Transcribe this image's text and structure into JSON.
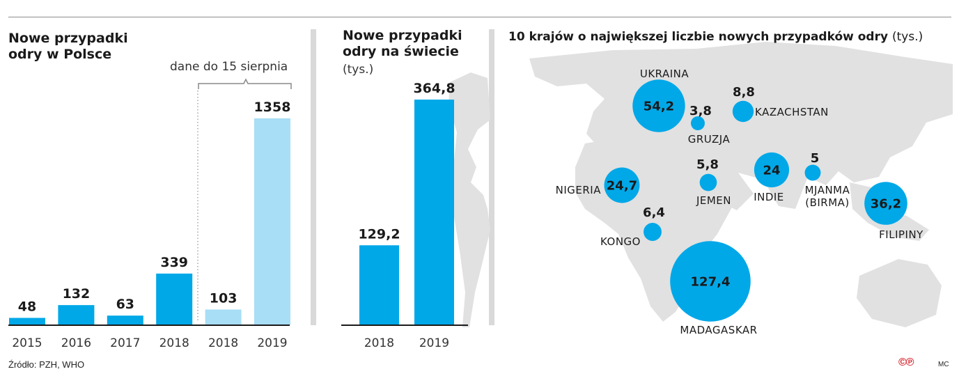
{
  "colors": {
    "accent": "#00a8e8",
    "accent_light": "#a8def6",
    "map": "#e1e1e1",
    "separator": "#d9d9d9"
  },
  "panels": {
    "poland": {
      "title_line1": "Nowe przypadki",
      "title_line2": "odry w Polsce",
      "bracket_note": "dane do 15 sierpnia"
    },
    "world": {
      "title_line1": "Nowe przypadki",
      "title_line2": "odry na świecie",
      "unit": "(tys.)"
    },
    "countries": {
      "title": "10 krajów o największej liczbie nowych przypadków odry",
      "unit": "(tys.)"
    }
  },
  "footer": {
    "source": "Źródło: PZH, WHO",
    "author": "MC",
    "logo": "©℗"
  },
  "chart_data": [
    {
      "type": "bar",
      "title": "Nowe przypadki odry w Polsce",
      "categories": [
        "2015",
        "2016",
        "2017",
        "2018",
        "2018",
        "2019"
      ],
      "values": [
        48,
        132,
        63,
        339,
        103,
        1358
      ],
      "value_labels": [
        "48",
        "132",
        "63",
        "339",
        "103",
        "1358"
      ],
      "highlight": [
        false,
        false,
        false,
        false,
        true,
        true
      ],
      "note": "dane do 15 sierpnia",
      "ylim": [
        0,
        1450
      ]
    },
    {
      "type": "bar",
      "title": "Nowe przypadki odry na świecie",
      "ylabel": "(tys.)",
      "categories": [
        "2018",
        "2019"
      ],
      "values": [
        129.2,
        364.8
      ],
      "value_labels": [
        "129,2",
        "364,8"
      ],
      "ylim": [
        0,
        370
      ]
    },
    {
      "type": "scatter",
      "title": "10 krajów o największej liczbie nowych przypadków odry",
      "ylabel": "(tys.)",
      "points": [
        {
          "country": "UKRAINA",
          "value": 54.2,
          "label": "54,2"
        },
        {
          "country": "GRUZJA",
          "value": 3.8,
          "label": "3,8"
        },
        {
          "country": "KAZACHSTAN",
          "value": 8.8,
          "label": "8,8"
        },
        {
          "country": "NIGERIA",
          "value": 24.7,
          "label": "24,7"
        },
        {
          "country": "JEMEN",
          "value": 5.8,
          "label": "5,8"
        },
        {
          "country": "INDIE",
          "value": 24,
          "label": "24"
        },
        {
          "country": "MJANMA",
          "country_line2": "(BIRMA)",
          "value": 5,
          "label": "5"
        },
        {
          "country": "KONGO",
          "value": 6.4,
          "label": "6,4"
        },
        {
          "country": "FILIPINY",
          "value": 36.2,
          "label": "36,2"
        },
        {
          "country": "MADAGASKAR",
          "value": 127.4,
          "label": "127,4"
        }
      ]
    }
  ]
}
